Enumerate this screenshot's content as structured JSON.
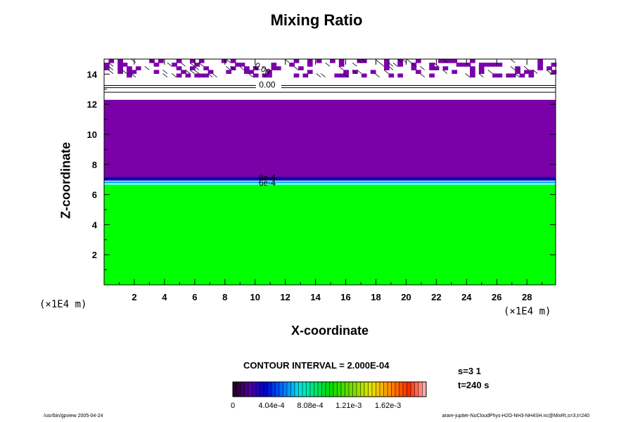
{
  "chart_data": {
    "type": "heatmap",
    "title": "Mixing Ratio",
    "xlabel": "X-coordinate",
    "ylabel": "Z-coordinate",
    "x_unit": "(×1E4 m)",
    "y_unit": "(×1E4 m)",
    "xlim": [
      0,
      29.9
    ],
    "ylim": [
      0,
      15
    ],
    "x_ticks": [
      2,
      4,
      6,
      8,
      10,
      12,
      14,
      16,
      18,
      20,
      22,
      24,
      26,
      28
    ],
    "y_ticks": [
      2,
      4,
      6,
      8,
      10,
      12,
      14
    ],
    "layers": [
      {
        "z_from": 0,
        "z_to": 6.6,
        "level": "upper",
        "color": "#00ff00"
      },
      {
        "z_from": 6.6,
        "z_to": 7.2,
        "level": "transition",
        "color": "#1040ff"
      },
      {
        "z_from": 7.2,
        "z_to": 12.3,
        "level": "lowest",
        "color": "#7a00a8"
      },
      {
        "z_from": 12.3,
        "z_to": 15,
        "level": "zero (patchy)",
        "color": "#ffffff"
      }
    ],
    "contour_labels": [
      "0.00",
      "0.00",
      "8e-4",
      "6e-4"
    ],
    "contour_interval": "CONTOUR INTERVAL = 2.000E-04",
    "colorbar": {
      "ticks": [
        "0",
        "4.04e-4",
        "8.08e-4",
        "1.21e-3",
        "1.62e-3"
      ],
      "range": [
        0,
        0.00202
      ]
    }
  },
  "info": {
    "slice": "s=3 1",
    "time": "t=240 s"
  },
  "footer": {
    "left": "/usr/bin/gpview 2005-04-24",
    "right": "arare-jupiter-NoCloudPhys-H2O-NH3-NH4SH.nc@MixRt,s=3,t=240"
  }
}
